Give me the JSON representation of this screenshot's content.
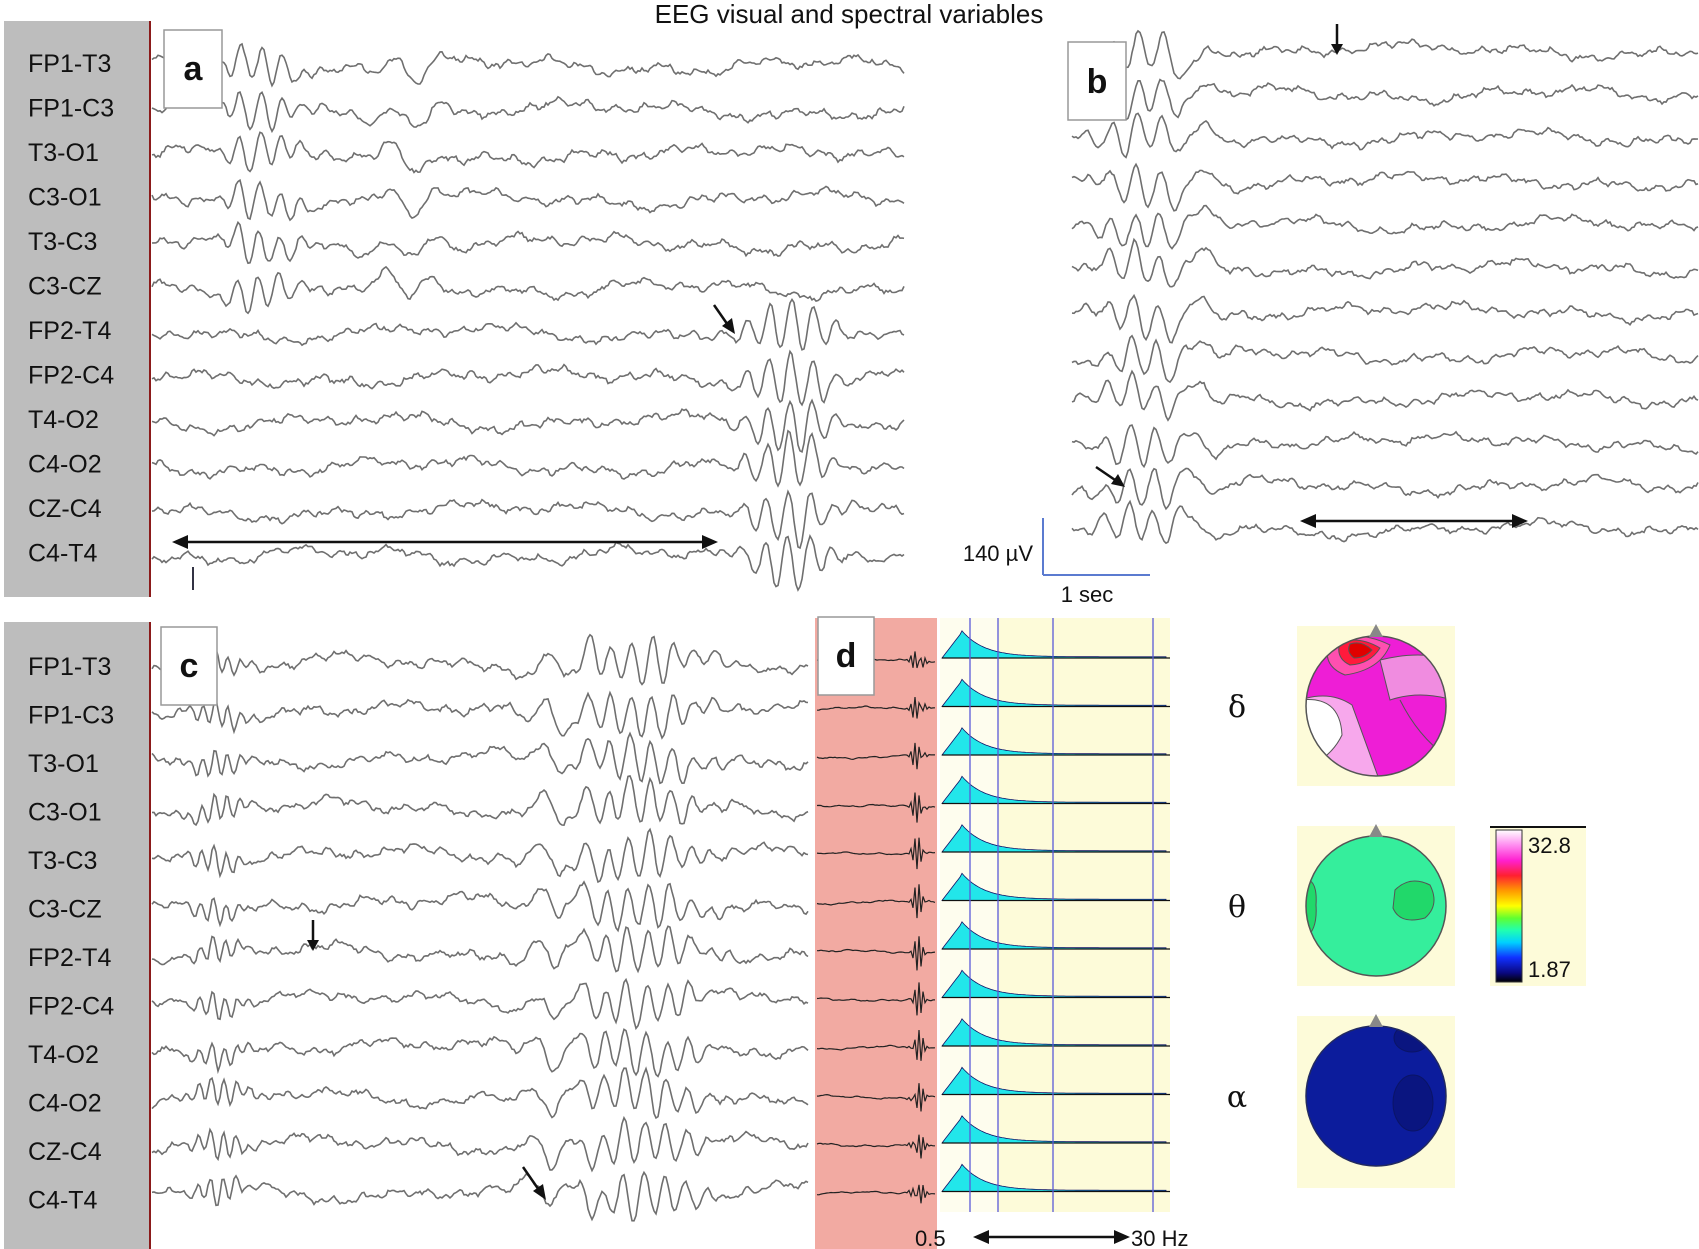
{
  "title": "EEG visual and spectral variables",
  "channels": [
    "FP1-T3",
    "FP1-C3",
    "T3-O1",
    "C3-O1",
    "T3-C3",
    "C3-CZ",
    "FP2-T4",
    "FP2-C4",
    "T4-O2",
    "C4-O2",
    "CZ-C4",
    "C4-T4"
  ],
  "panels": {
    "a": {
      "letter": "a"
    },
    "b": {
      "letter": "b"
    },
    "c": {
      "letter": "c"
    },
    "d": {
      "letter": "d"
    }
  },
  "scale_bar": {
    "amplitude": "140 µV",
    "time": "1 sec"
  },
  "spectrum_axis": {
    "low": "0.5",
    "high": "30 Hz"
  },
  "maps": [
    {
      "band": "δ",
      "band_name": "delta"
    },
    {
      "band": "θ",
      "band_name": "theta"
    },
    {
      "band": "α",
      "band_name": "alpha"
    }
  ],
  "colorbar": {
    "max": "32.8",
    "min": "1.87"
  },
  "colors": {
    "label_column": "#bdbdbd",
    "trace": "#6f6f6f",
    "panel_d_background": "#f2aaa2",
    "spectrum_background": "#fdfbd9",
    "spectrum_fill": "#22e6ea",
    "delta_map": "#ee1ed6",
    "theta_map": "#35ee9c",
    "alpha_map": "#0c1c9c"
  }
}
